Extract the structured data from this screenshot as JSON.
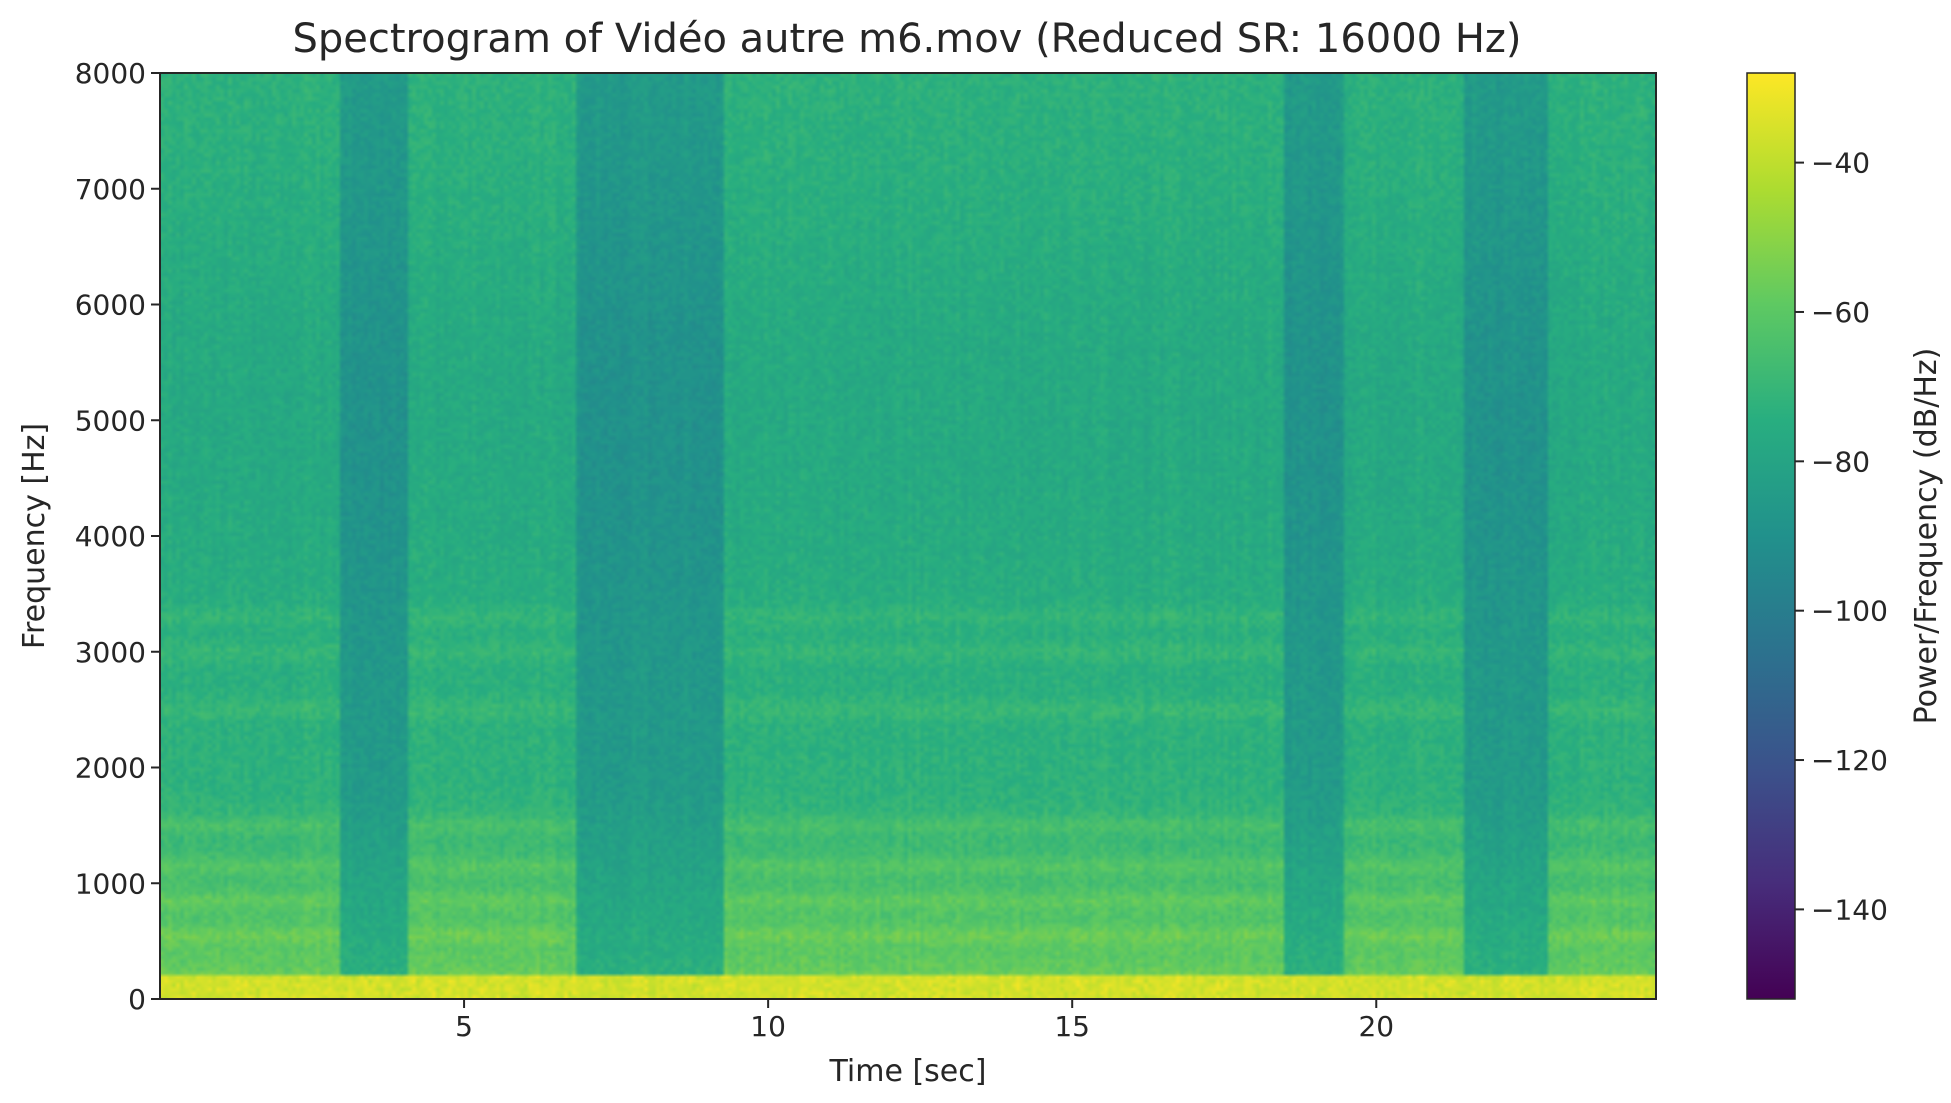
{
  "chart_data": {
    "type": "heatmap",
    "title": "Spectrogram of Vidéo autre m6.mov (Reduced SR: 16000 Hz)",
    "xlabel": "Time [sec]",
    "ylabel": "Frequency [Hz]",
    "xlim": [
      0,
      24.6
    ],
    "ylim": [
      0,
      8000
    ],
    "x_ticks": [
      5,
      10,
      15,
      20
    ],
    "y_ticks": [
      0,
      1000,
      2000,
      3000,
      4000,
      5000,
      6000,
      7000,
      8000
    ],
    "colorbar": {
      "label": "Power/Frequency (dB/Hz)",
      "colormap": "viridis",
      "range": [
        -152,
        -28
      ],
      "ticks": [
        -40,
        -60,
        -80,
        -100,
        -120,
        -140
      ],
      "tick_labels": [
        "−40",
        "−60",
        "−80",
        "−100",
        "−120",
        "−140"
      ]
    },
    "grid": false,
    "quiet_segments_sec": [
      [
        3.1,
        3.9
      ],
      [
        7.0,
        9.1
      ],
      [
        18.6,
        19.3
      ],
      [
        21.6,
        22.7
      ]
    ],
    "harmonic_bands_hz": [
      150,
      550,
      850,
      1150,
      1500,
      2500,
      3000,
      3300
    ],
    "value_levels_db": {
      "low_freq_peak": -36,
      "harmonics": -52,
      "speech_bg": -72,
      "quiet_bg": -84
    }
  }
}
